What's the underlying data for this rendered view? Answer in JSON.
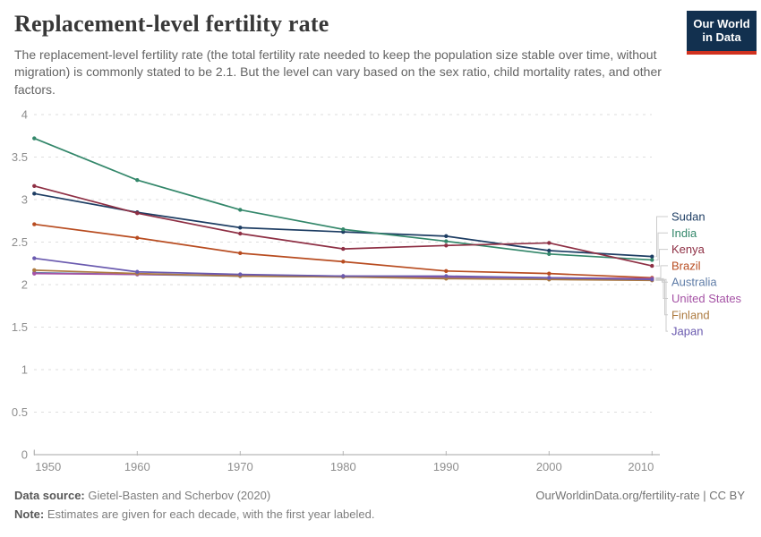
{
  "header": {
    "title": "Replacement-level fertility rate",
    "subtitle": "The replacement-level fertility rate (the total fertility rate needed to keep the population size stable over time, without migration) is commonly stated to be 2.1. But the level can vary based on the sex ratio, child mortality rates, and other factors.",
    "logo": {
      "line1": "Our World",
      "line2": "in Data",
      "bg_color": "#12304f",
      "stripe_color": "#d0311f"
    }
  },
  "chart_data": {
    "type": "line",
    "title": "Replacement-level fertility rate",
    "x": [
      1950,
      1960,
      1970,
      1980,
      1990,
      2000,
      2010
    ],
    "xticks": [
      "1950",
      "1960",
      "1970",
      "1980",
      "1990",
      "2000",
      "2010"
    ],
    "yticks": [
      0,
      0.5,
      1,
      1.5,
      2,
      2.5,
      3,
      3.5,
      4
    ],
    "ylim": [
      0,
      4
    ],
    "xlim": [
      1950,
      2010
    ],
    "grid": "horizontal-dashed",
    "legend_position": "right",
    "marker": "point-per-decade",
    "series": [
      {
        "name": "Sudan",
        "color": "#1d3d63",
        "values": [
          3.07,
          2.85,
          2.67,
          2.62,
          2.57,
          2.4,
          2.33
        ]
      },
      {
        "name": "India",
        "color": "#33876a",
        "values": [
          3.72,
          3.23,
          2.88,
          2.65,
          2.51,
          2.36,
          2.29
        ]
      },
      {
        "name": "Kenya",
        "color": "#8e2f44",
        "values": [
          3.16,
          2.84,
          2.6,
          2.42,
          2.46,
          2.49,
          2.22
        ]
      },
      {
        "name": "Brazil",
        "color": "#b84c20",
        "values": [
          2.71,
          2.55,
          2.37,
          2.27,
          2.16,
          2.13,
          2.08
        ]
      },
      {
        "name": "Australia",
        "color": "#5e7ca7",
        "values": [
          2.14,
          2.12,
          2.1,
          2.09,
          2.08,
          2.07,
          2.06
        ]
      },
      {
        "name": "United States",
        "color": "#a552a5",
        "values": [
          2.13,
          2.12,
          2.11,
          2.1,
          2.09,
          2.08,
          2.07
        ]
      },
      {
        "name": "Finland",
        "color": "#ad7b41",
        "values": [
          2.17,
          2.13,
          2.1,
          2.09,
          2.07,
          2.06,
          2.05
        ]
      },
      {
        "name": "Japan",
        "color": "#6a5aaf",
        "values": [
          2.31,
          2.15,
          2.12,
          2.1,
          2.1,
          2.08,
          2.06
        ]
      }
    ]
  },
  "footer": {
    "data_source_label": "Data source:",
    "data_source_value": " Gietel-Basten and Scherbov (2020)",
    "note_label": "Note:",
    "note_value": " Estimates are given for each decade, with the first year labeled.",
    "right": "OurWorldinData.org/fertility-rate | CC BY"
  }
}
